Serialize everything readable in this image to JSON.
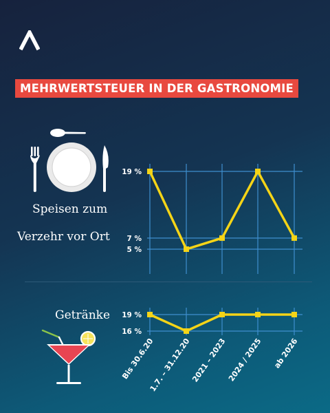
{
  "title": "MEHRWERTSTEUER IN DER GASTRONOMIE",
  "icons": {
    "logo": "abstract-a-logo-icon",
    "food": "plate-fork-knife-icon",
    "drinks": "cocktail-glass-icon"
  },
  "colors": {
    "banner": "#e8493f",
    "line": "#f5d417",
    "grid": "#3f8fcf",
    "text": "#ffffff"
  },
  "chart_data": [
    {
      "type": "line",
      "label_lines": [
        "Speisen zum",
        "Verzehr vor Ort"
      ],
      "categories": [
        "Bis 30.6.20",
        "1.7. – 31.12.20",
        "2021 – 2023",
        "2024 / 2025",
        "ab 2026"
      ],
      "values": [
        19,
        5,
        7,
        19,
        7
      ],
      "value_unit": "%",
      "y_ticks": [
        19,
        7,
        5
      ],
      "y_tick_labels": [
        "19 %",
        "7 %",
        "5 %"
      ],
      "ylim": [
        0,
        19
      ],
      "grid": true
    },
    {
      "type": "line",
      "label_lines": [
        "Getränke"
      ],
      "categories": [
        "Bis 30.6.20",
        "1.7. – 31.12.20",
        "2021 – 2023",
        "2024 / 2025",
        "ab 2026"
      ],
      "values": [
        19,
        16,
        19,
        19,
        19
      ],
      "value_unit": "%",
      "y_ticks": [
        19,
        16
      ],
      "y_tick_labels": [
        "19 %",
        "16 %"
      ],
      "ylim": [
        16,
        19
      ],
      "grid": true
    }
  ]
}
